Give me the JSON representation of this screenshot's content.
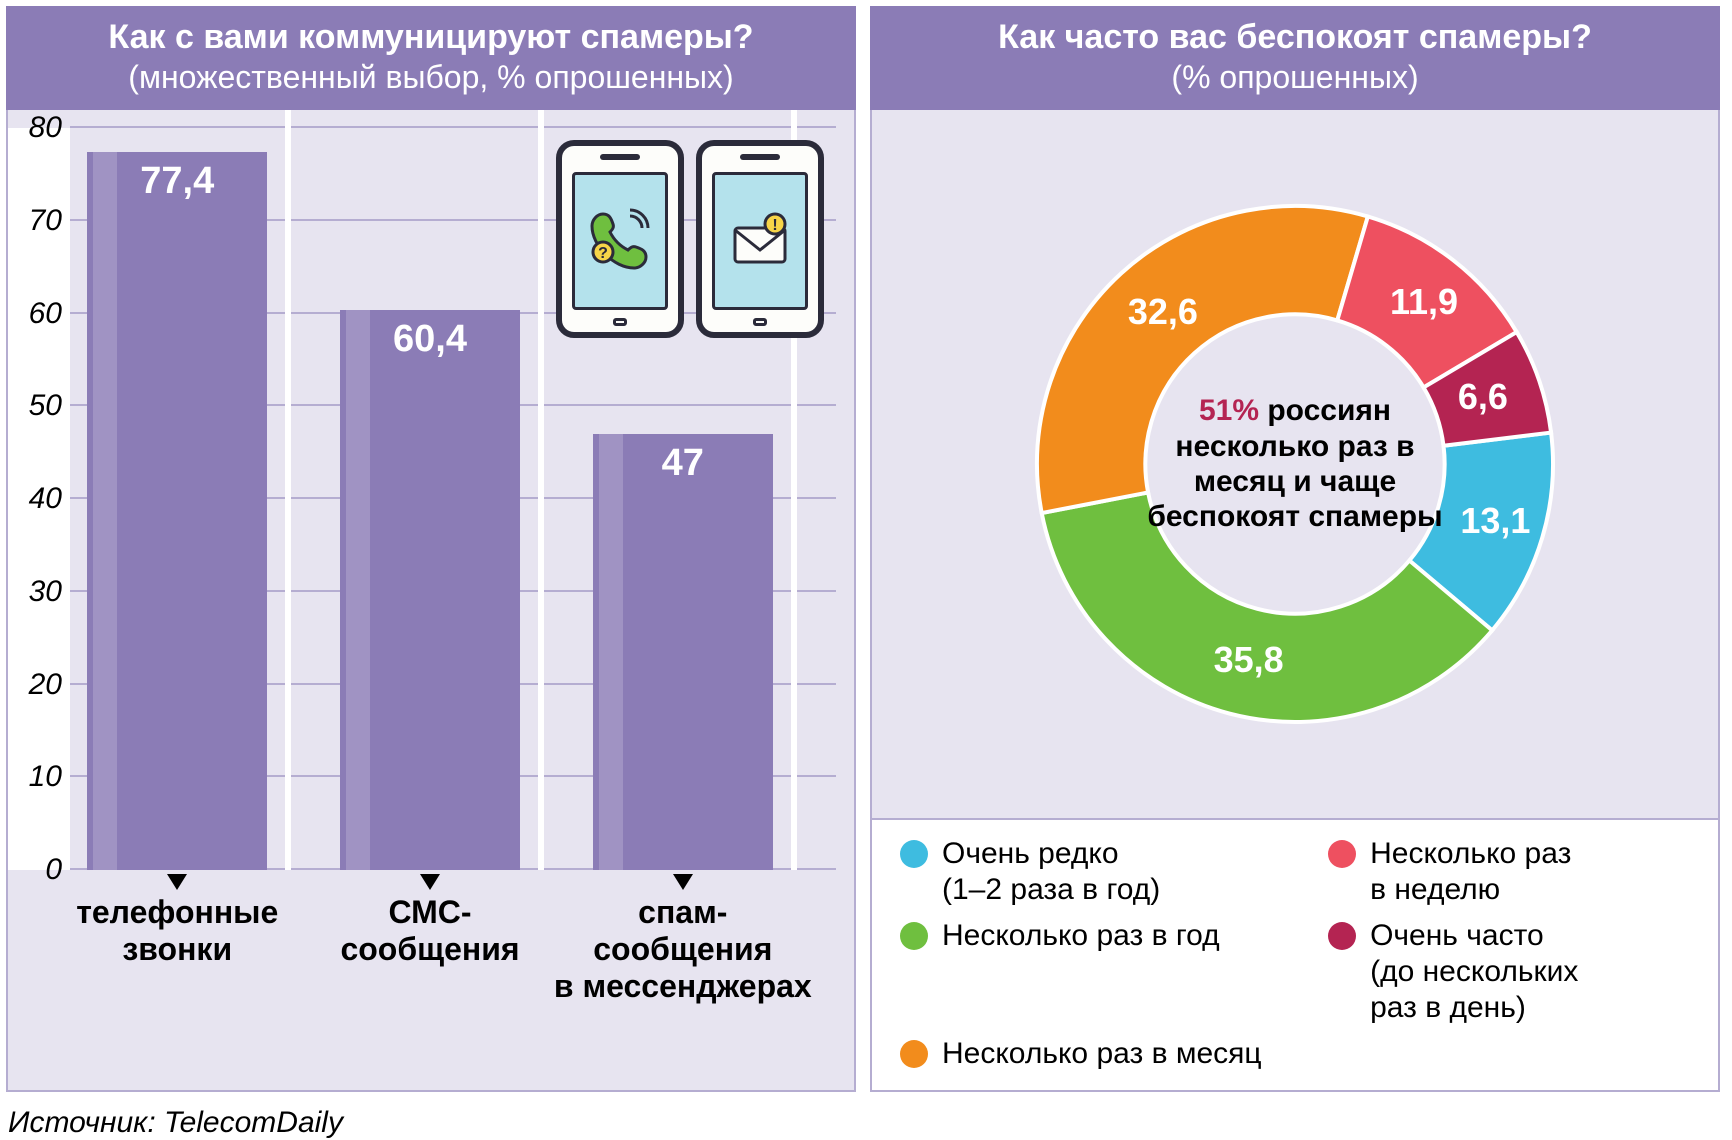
{
  "left": {
    "title": "Как с вами коммуницируют спамеры?",
    "subtitle": "(множественный выбор, % опрошенных)",
    "bar_chart": {
      "type": "bar",
      "ylim": [
        0,
        80
      ],
      "ytick_step": 10,
      "yticks": [
        "0",
        "10",
        "20",
        "30",
        "40",
        "50",
        "60",
        "70",
        "80"
      ],
      "grid_color": "#b5add1",
      "background_color": "#e7e4f0",
      "bar_color": "#8b7cb6",
      "value_label_color": "#ffffff",
      "categories": [
        {
          "label": "телефонные\nзвонки",
          "value": 77.4,
          "value_label": "77,4"
        },
        {
          "label": "СМС-\nсообщения",
          "value": 60.4,
          "value_label": "60,4"
        },
        {
          "label": "спам-\nсообщения\nв мессенджерах",
          "value": 47,
          "value_label": "47"
        }
      ]
    },
    "source": "Источник: TelecomDaily"
  },
  "right": {
    "title": "Как часто вас беспокоят спамеры?",
    "subtitle": "(% опрошенных)",
    "donut": {
      "type": "donut",
      "background_color": "#e7e4f0",
      "inner_radius_ratio": 0.58,
      "center_text_pct": "51%",
      "center_text": " россиян несколько раз в месяц и чаще беспокоят спамеры",
      "slices": [
        {
          "key": "very_rare",
          "label": "Очень редко\n(1–2 раза в год)",
          "value": 13.1,
          "value_label": "13,1",
          "color": "#3ebce0"
        },
        {
          "key": "few_year",
          "label": "Несколько раз в год",
          "value": 35.8,
          "value_label": "35,8",
          "color": "#6fbf3f"
        },
        {
          "key": "few_month",
          "label": "Несколько раз в месяц",
          "value": 32.6,
          "value_label": "32,6",
          "color": "#f28c1c"
        },
        {
          "key": "few_week",
          "label": "Несколько раз\nв неделю",
          "value": 11.9,
          "value_label": "11,9",
          "color": "#ee5060"
        },
        {
          "key": "very_often",
          "label": "Очень часто\n(до нескольких\nраз в день)",
          "value": 6.6,
          "value_label": "6,6",
          "color": "#b42452"
        }
      ]
    }
  },
  "colors": {
    "header_bg": "#8b7cb6",
    "panel_bg": "#e7e4f0",
    "panel_border": "#b5add1"
  }
}
